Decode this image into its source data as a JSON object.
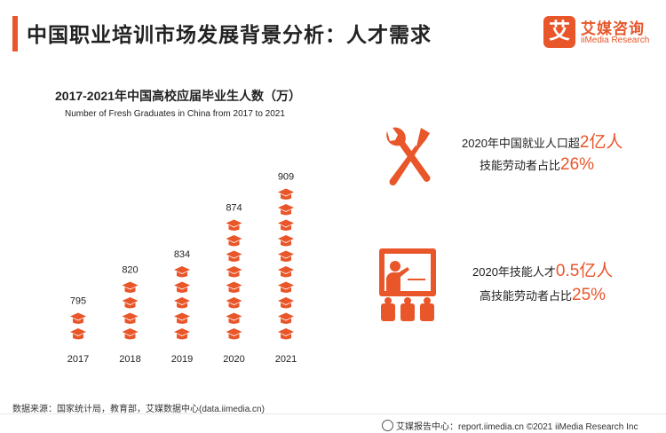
{
  "header": {
    "title": "中国职业培训市场发展背景分析：人才需求"
  },
  "logo": {
    "mark": "艾",
    "name_cn": "艾媒咨询",
    "name_en": "iiMedia Research"
  },
  "stats": {
    "stat1_line1_prefix": "2020年中国就业人口超",
    "stat1_line1_value": "2亿人",
    "stat1_line2_prefix": "技能劳动者占比",
    "stat1_line2_value": "26%",
    "stat2_line1_prefix": "2020年技能人才",
    "stat2_line1_value": "0.5亿人",
    "stat2_line2_prefix": "高技能劳动者占比",
    "stat2_line2_value": "25%"
  },
  "icons": {
    "tools": "wrench-screwdriver-icon",
    "teacher": "teacher-presentation-icon"
  },
  "colors": {
    "accent": "#e8562a"
  },
  "footer": {
    "source": "数据来源：国家统计局，教育部，艾媒数据中心(data.iimedia.cn)",
    "copyright": "艾媒报告中心：report.iimedia.cn   ©2021  iiMedia Research  Inc"
  },
  "chart_data": {
    "type": "bar",
    "title": "2017-2021年中国高校应届毕业生人数（万）",
    "subtitle": "Number of Fresh Graduates in China from 2017 to 2021",
    "categories": [
      "2017",
      "2018",
      "2019",
      "2020",
      "2021"
    ],
    "values": [
      795,
      820,
      834,
      874,
      909
    ],
    "data_labels": [
      "795",
      "820",
      "834",
      "874",
      "909"
    ],
    "ylim": [
      770,
      920
    ],
    "grid": false,
    "legend": "none",
    "marker": "graduation-cap-icon"
  }
}
